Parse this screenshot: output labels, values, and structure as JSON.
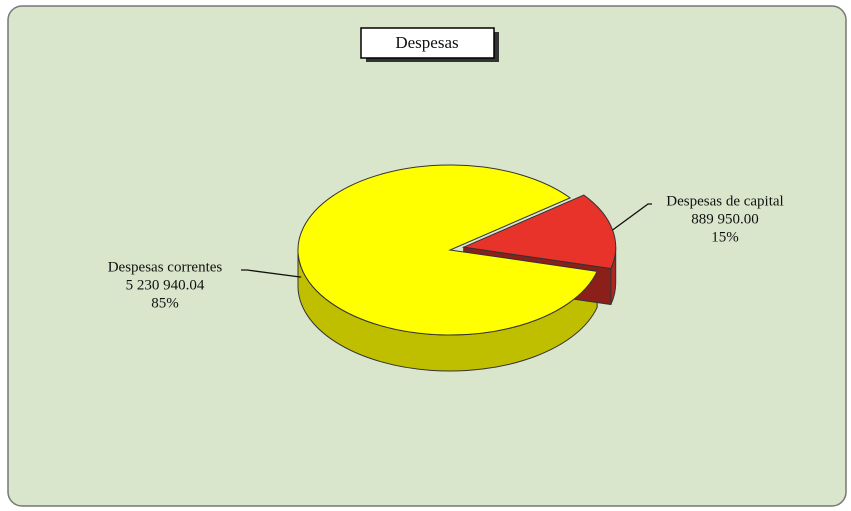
{
  "chart_data": {
    "type": "pie",
    "title": "Despesas",
    "categories": [
      "Despesas correntes",
      "Despesas de capital"
    ],
    "values": [
      5230940.04,
      889950.0
    ],
    "value_labels": [
      "5 230 940.04",
      "889 950.00"
    ],
    "percent_labels": [
      "85%",
      "15%"
    ],
    "colors": [
      "#ffff00",
      "#e8332a"
    ]
  }
}
